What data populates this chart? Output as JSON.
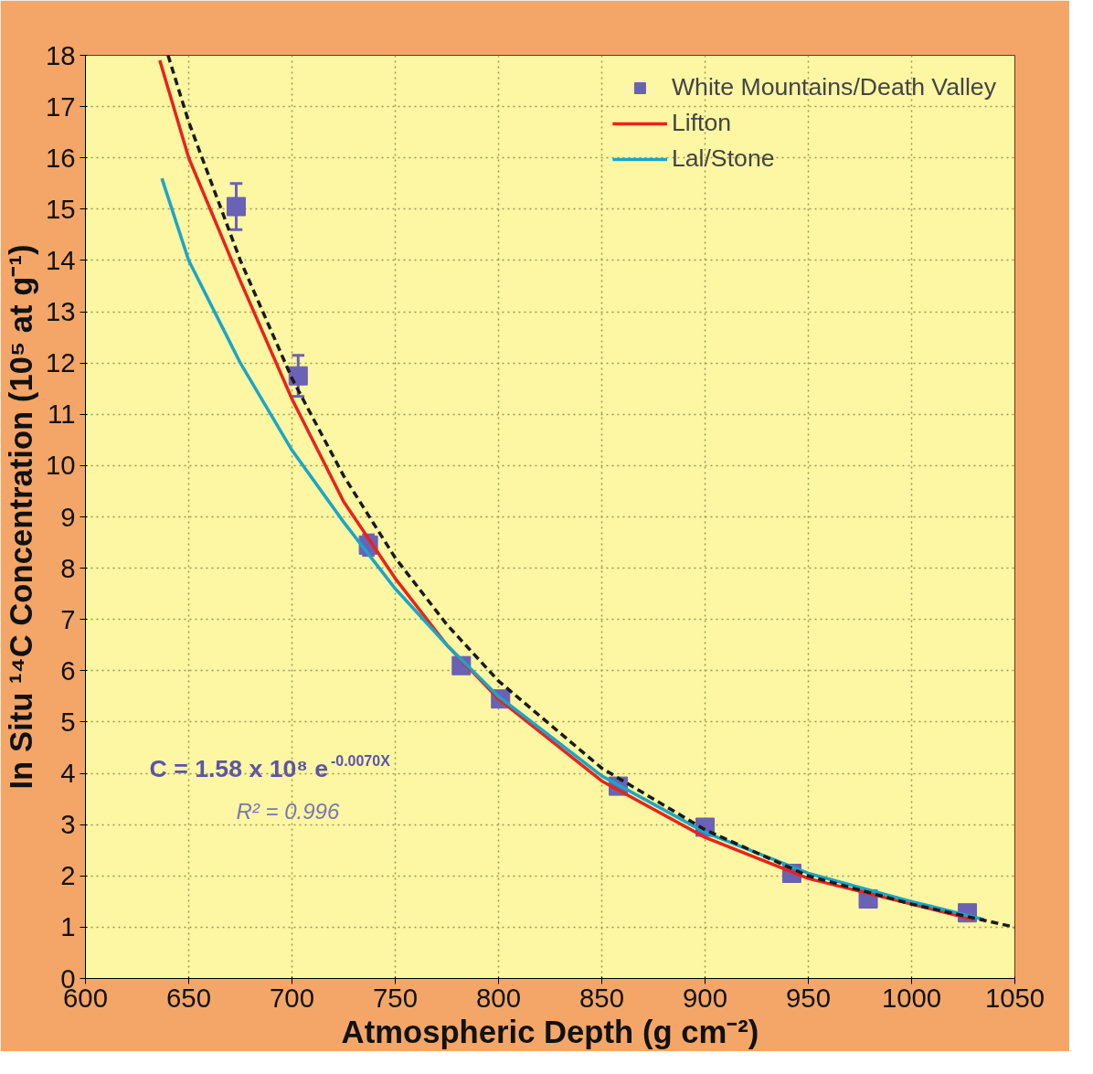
{
  "chart_data": {
    "type": "line",
    "xlabel": "Atmospheric Depth (g cm⁻²)",
    "ylabel": "In Situ ¹⁴C Concentration (10⁵ at g⁻¹)",
    "xlim": [
      600,
      1050
    ],
    "ylim": [
      0,
      18
    ],
    "xticks": [
      600,
      650,
      700,
      750,
      800,
      850,
      900,
      950,
      1000,
      1050
    ],
    "yticks": [
      0,
      1,
      2,
      3,
      4,
      5,
      6,
      7,
      8,
      9,
      10,
      11,
      12,
      13,
      14,
      15,
      16,
      17,
      18
    ],
    "grid": true,
    "legend": "top right",
    "annotations": [
      "C = 1.58 x 10⁸ e$^{-0.0070X}$",
      "R² = 0.996"
    ],
    "series": [
      {
        "type": "scatter",
        "name": "White Mountains/Death Valley",
        "color": "#6a62b4",
        "marker": "square",
        "x": [
          673,
          703,
          737,
          782,
          801,
          858,
          900,
          942,
          979,
          1027
        ],
        "values": [
          15.05,
          11.75,
          8.45,
          6.1,
          5.45,
          3.75,
          2.95,
          2.05,
          1.55,
          1.28
        ],
        "errors": [
          0.45,
          0.4,
          0.2,
          null,
          null,
          null,
          null,
          null,
          null,
          null
        ]
      },
      {
        "name": "Lifton",
        "color": "#e8241a",
        "line_style": "solid",
        "x": [
          636,
          650,
          675,
          700,
          725,
          750,
          775,
          800,
          850,
          900,
          950,
          1000,
          1030
        ],
        "values": [
          17.9,
          16.0,
          13.6,
          11.3,
          9.3,
          7.8,
          6.5,
          5.45,
          3.85,
          2.75,
          1.95,
          1.45,
          1.15
        ]
      },
      {
        "name": "Lal/Stone",
        "color": "#1aa6c8",
        "line_style": "solid",
        "x": [
          637,
          650,
          675,
          700,
          725,
          750,
          775,
          800,
          850,
          900,
          950,
          1000,
          1035
        ],
        "values": [
          15.6,
          14.0,
          12.0,
          10.3,
          8.9,
          7.6,
          6.5,
          5.5,
          3.95,
          2.85,
          2.05,
          1.5,
          1.15
        ]
      },
      {
        "color": "#1a1a1a",
        "line_style": "dashed",
        "x": [
          640,
          650,
          675,
          700,
          725,
          750,
          775,
          800,
          850,
          900,
          950,
          1000,
          1050
        ],
        "values": [
          18.0,
          16.7,
          14.0,
          11.7,
          9.8,
          8.2,
          6.9,
          5.8,
          4.1,
          2.9,
          2.0,
          1.45,
          1.0
        ]
      }
    ]
  }
}
